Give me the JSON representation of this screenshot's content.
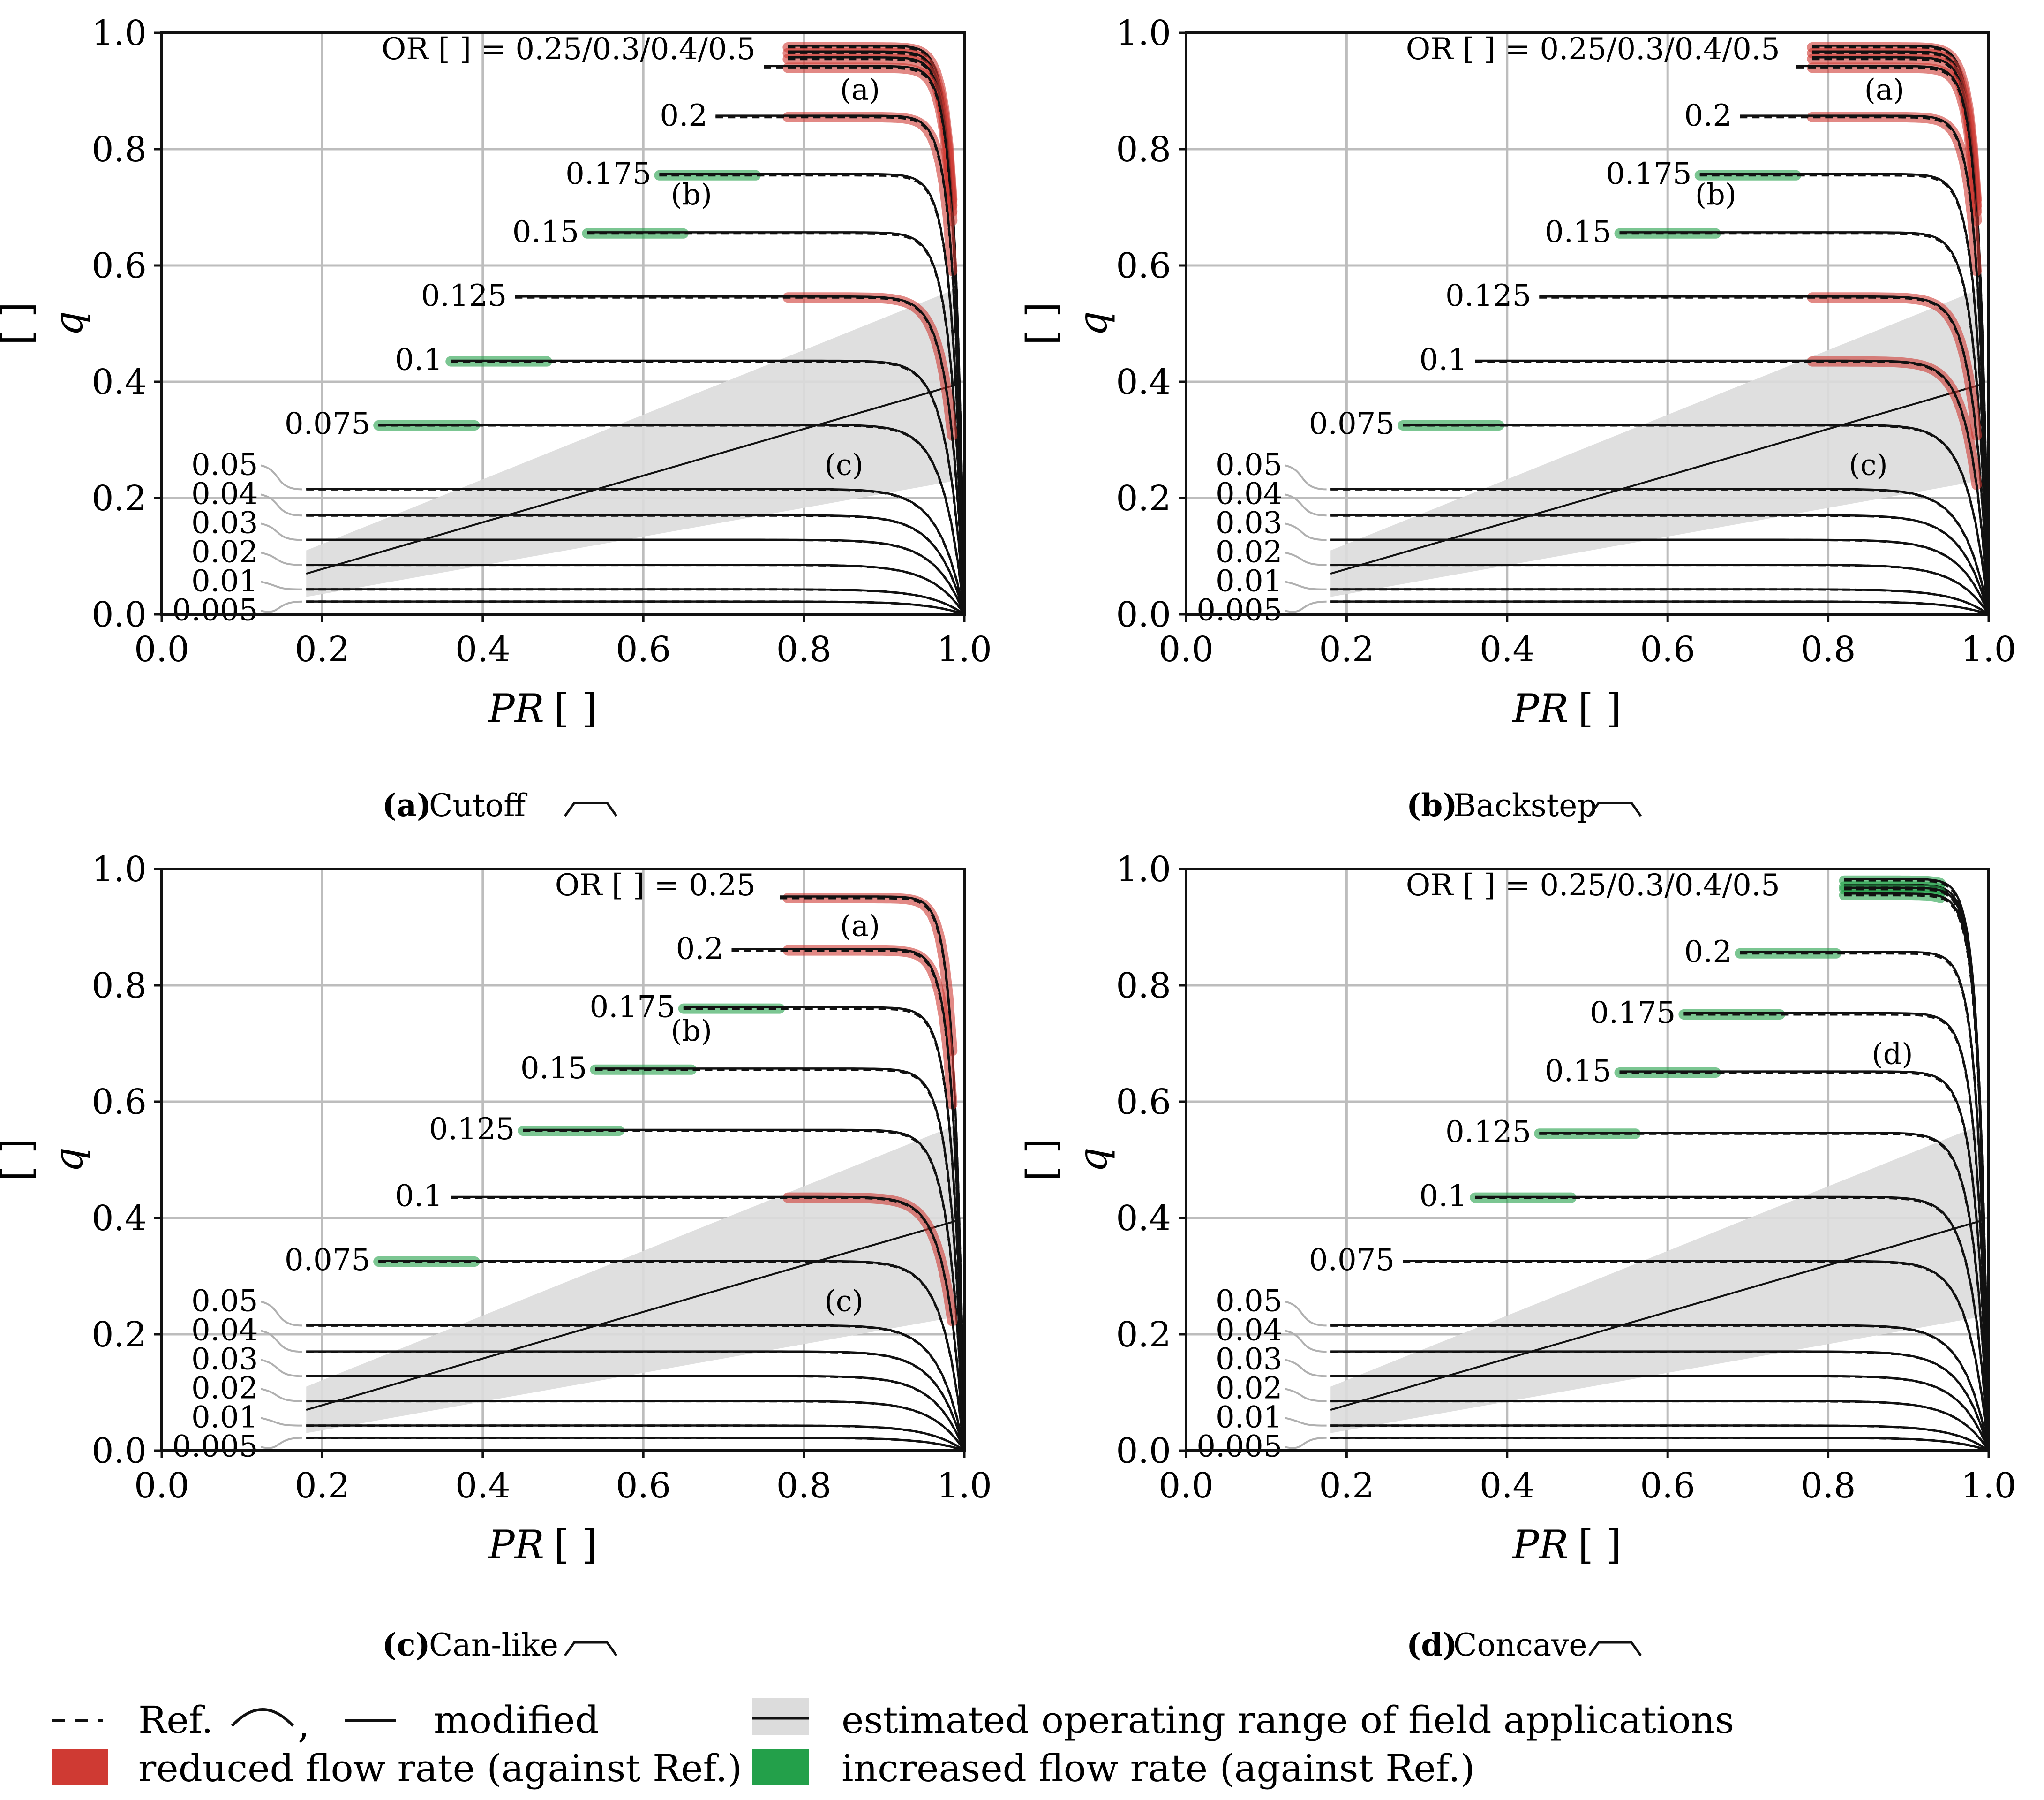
{
  "colors": {
    "reduced": "#cf3a33",
    "increased": "#23a04a",
    "range_fill": "#dcdcdc",
    "grid": "#bdbdbd",
    "curve": "#111111",
    "leader": "#b0b0b0"
  },
  "axes_common": {
    "xlabel_var": "PR",
    "xlabel_unit": "[ ]",
    "ylabel_var": "q",
    "ylabel_unit": "[ ]",
    "xticks": [
      "0.0",
      "0.2",
      "0.4",
      "0.6",
      "0.8",
      "1.0"
    ],
    "yticks": [
      "0.0",
      "0.2",
      "0.4",
      "0.6",
      "0.8",
      "1.0"
    ]
  },
  "chart_data": [
    {
      "type": "line",
      "panel": "a",
      "caption_letter": "(a)",
      "caption_name": "Cutoff",
      "top_label": "OR [ ] = 0.25/0.3/0.4/0.5",
      "xlim": [
        0,
        1
      ],
      "ylim": [
        0,
        1
      ],
      "grid": true,
      "series": [
        {
          "or": "0.5",
          "q": 0.975,
          "x_start": 0.78,
          "mod": "reduced"
        },
        {
          "or": "0.4",
          "q": 0.965,
          "x_start": 0.78,
          "mod": "reduced"
        },
        {
          "or": "0.3",
          "q": 0.955,
          "x_start": 0.78,
          "mod": "reduced"
        },
        {
          "or": "0.25",
          "q": 0.94,
          "x_start": 0.75,
          "mod": "reduced"
        },
        {
          "or": "0.2",
          "q": 0.855,
          "x_start": 0.69,
          "mod": "reduced"
        },
        {
          "or": "0.175",
          "q": 0.755,
          "x_start": 0.62,
          "mod": "increased"
        },
        {
          "or": "0.15",
          "q": 0.655,
          "x_start": 0.53,
          "mod": "increased"
        },
        {
          "or": "0.125",
          "q": 0.545,
          "x_start": 0.44,
          "mod": "reduced"
        },
        {
          "or": "0.1",
          "q": 0.435,
          "x_start": 0.36,
          "mod": "increased"
        },
        {
          "or": "0.075",
          "q": 0.325,
          "x_start": 0.27,
          "mod": "increased"
        },
        {
          "or": "0.05",
          "q": 0.215,
          "x_start": 0.18,
          "mod": "none"
        },
        {
          "or": "0.04",
          "q": 0.17,
          "x_start": 0.18,
          "mod": "none"
        },
        {
          "or": "0.03",
          "q": 0.128,
          "x_start": 0.18,
          "mod": "none"
        },
        {
          "or": "0.02",
          "q": 0.085,
          "x_start": 0.18,
          "mod": "none"
        },
        {
          "or": "0.01",
          "q": 0.043,
          "x_start": 0.18,
          "mod": "none"
        },
        {
          "or": "0.005",
          "q": 0.022,
          "x_start": 0.18,
          "mod": "none"
        }
      ],
      "annotations": [
        {
          "text": "(a)",
          "x": 0.87,
          "y": 0.885
        },
        {
          "text": "(b)",
          "x": 0.66,
          "y": 0.705
        },
        {
          "text": "(c)",
          "x": 0.85,
          "y": 0.24
        }
      ]
    },
    {
      "type": "line",
      "panel": "b",
      "caption_letter": "(b)",
      "caption_name": "Backstep",
      "top_label": "OR [ ] = 0.25/0.3/0.4/0.5",
      "xlim": [
        0,
        1
      ],
      "ylim": [
        0,
        1
      ],
      "grid": true,
      "series": [
        {
          "or": "0.5",
          "q": 0.975,
          "x_start": 0.78,
          "mod": "reduced"
        },
        {
          "or": "0.4",
          "q": 0.965,
          "x_start": 0.78,
          "mod": "reduced"
        },
        {
          "or": "0.3",
          "q": 0.955,
          "x_start": 0.78,
          "mod": "reduced"
        },
        {
          "or": "0.25",
          "q": 0.94,
          "x_start": 0.76,
          "mod": "reduced"
        },
        {
          "or": "0.2",
          "q": 0.855,
          "x_start": 0.69,
          "mod": "reduced"
        },
        {
          "or": "0.175",
          "q": 0.755,
          "x_start": 0.64,
          "mod": "increased"
        },
        {
          "or": "0.15",
          "q": 0.655,
          "x_start": 0.54,
          "mod": "increased"
        },
        {
          "or": "0.125",
          "q": 0.545,
          "x_start": 0.44,
          "mod": "reduced"
        },
        {
          "or": "0.1",
          "q": 0.435,
          "x_start": 0.36,
          "mod": "reduced"
        },
        {
          "or": "0.075",
          "q": 0.325,
          "x_start": 0.27,
          "mod": "increased"
        },
        {
          "or": "0.05",
          "q": 0.215,
          "x_start": 0.18,
          "mod": "none"
        },
        {
          "or": "0.04",
          "q": 0.17,
          "x_start": 0.18,
          "mod": "none"
        },
        {
          "or": "0.03",
          "q": 0.128,
          "x_start": 0.18,
          "mod": "none"
        },
        {
          "or": "0.02",
          "q": 0.085,
          "x_start": 0.18,
          "mod": "none"
        },
        {
          "or": "0.01",
          "q": 0.043,
          "x_start": 0.18,
          "mod": "none"
        },
        {
          "or": "0.005",
          "q": 0.022,
          "x_start": 0.18,
          "mod": "none"
        }
      ],
      "annotations": [
        {
          "text": "(a)",
          "x": 0.87,
          "y": 0.885
        },
        {
          "text": "(b)",
          "x": 0.66,
          "y": 0.705
        },
        {
          "text": "(c)",
          "x": 0.85,
          "y": 0.24
        }
      ]
    },
    {
      "type": "line",
      "panel": "c",
      "caption_letter": "(c)",
      "caption_name": "Can-like",
      "top_label": "OR [ ] = 0.25",
      "xlim": [
        0,
        1
      ],
      "ylim": [
        0,
        1
      ],
      "grid": true,
      "series": [
        {
          "or": "0.25",
          "q": 0.95,
          "x_start": 0.77,
          "mod": "reduced"
        },
        {
          "or": "0.2",
          "q": 0.86,
          "x_start": 0.71,
          "mod": "reduced"
        },
        {
          "or": "0.175",
          "q": 0.76,
          "x_start": 0.65,
          "mod": "increased"
        },
        {
          "or": "0.15",
          "q": 0.655,
          "x_start": 0.54,
          "mod": "increased"
        },
        {
          "or": "0.125",
          "q": 0.55,
          "x_start": 0.45,
          "mod": "increased"
        },
        {
          "or": "0.1",
          "q": 0.435,
          "x_start": 0.36,
          "mod": "reduced"
        },
        {
          "or": "0.075",
          "q": 0.325,
          "x_start": 0.27,
          "mod": "increased"
        },
        {
          "or": "0.05",
          "q": 0.215,
          "x_start": 0.18,
          "mod": "none"
        },
        {
          "or": "0.04",
          "q": 0.17,
          "x_start": 0.18,
          "mod": "none"
        },
        {
          "or": "0.03",
          "q": 0.128,
          "x_start": 0.18,
          "mod": "none"
        },
        {
          "or": "0.02",
          "q": 0.085,
          "x_start": 0.18,
          "mod": "none"
        },
        {
          "or": "0.01",
          "q": 0.043,
          "x_start": 0.18,
          "mod": "none"
        },
        {
          "or": "0.005",
          "q": 0.022,
          "x_start": 0.18,
          "mod": "none"
        }
      ],
      "annotations": [
        {
          "text": "(a)",
          "x": 0.87,
          "y": 0.885
        },
        {
          "text": "(b)",
          "x": 0.66,
          "y": 0.705
        },
        {
          "text": "(c)",
          "x": 0.85,
          "y": 0.24
        }
      ]
    },
    {
      "type": "line",
      "panel": "d",
      "caption_letter": "(d)",
      "caption_name": "Concave",
      "top_label": "OR [ ] = 0.25/0.3/0.4/0.5",
      "xlim": [
        0,
        1
      ],
      "ylim": [
        0,
        1
      ],
      "grid": true,
      "series": [
        {
          "or": "0.5",
          "q": 0.98,
          "x_start": 0.82,
          "mod": "increased"
        },
        {
          "or": "0.4",
          "q": 0.97,
          "x_start": 0.82,
          "mod": "increased"
        },
        {
          "or": "0.3",
          "q": 0.965,
          "x_start": 0.82,
          "mod": "increased"
        },
        {
          "or": "0.25",
          "q": 0.955,
          "x_start": 0.82,
          "mod": "increased"
        },
        {
          "or": "0.2",
          "q": 0.855,
          "x_start": 0.69,
          "mod": "increased"
        },
        {
          "or": "0.175",
          "q": 0.75,
          "x_start": 0.62,
          "mod": "increased"
        },
        {
          "or": "0.15",
          "q": 0.65,
          "x_start": 0.54,
          "mod": "increased"
        },
        {
          "or": "0.125",
          "q": 0.545,
          "x_start": 0.44,
          "mod": "increased"
        },
        {
          "or": "0.1",
          "q": 0.435,
          "x_start": 0.36,
          "mod": "increased"
        },
        {
          "or": "0.075",
          "q": 0.325,
          "x_start": 0.27,
          "mod": "none"
        },
        {
          "or": "0.05",
          "q": 0.215,
          "x_start": 0.18,
          "mod": "none"
        },
        {
          "or": "0.04",
          "q": 0.17,
          "x_start": 0.18,
          "mod": "none"
        },
        {
          "or": "0.03",
          "q": 0.128,
          "x_start": 0.18,
          "mod": "none"
        },
        {
          "or": "0.02",
          "q": 0.085,
          "x_start": 0.18,
          "mod": "none"
        },
        {
          "or": "0.01",
          "q": 0.043,
          "x_start": 0.18,
          "mod": "none"
        },
        {
          "or": "0.005",
          "q": 0.022,
          "x_start": 0.18,
          "mod": "none"
        }
      ],
      "annotations": [
        {
          "text": "(d)",
          "x": 0.88,
          "y": 0.665
        }
      ]
    }
  ],
  "operating_range": {
    "line": [
      [
        0.18,
        0.07
      ],
      [
        0.99,
        0.395
      ]
    ],
    "band_lower": [
      [
        0.18,
        0.03
      ],
      [
        0.99,
        0.23
      ]
    ],
    "band_upper": [
      [
        0.18,
        0.11
      ],
      [
        0.99,
        0.56
      ]
    ]
  },
  "legend": {
    "ref_text": "Ref.",
    "comma": ",",
    "modified_text": "modified",
    "reduced_text": "reduced flow rate (against Ref.)",
    "range_text": "estimated operating range of field applications",
    "increased_text": "increased flow rate (against Ref.)"
  }
}
